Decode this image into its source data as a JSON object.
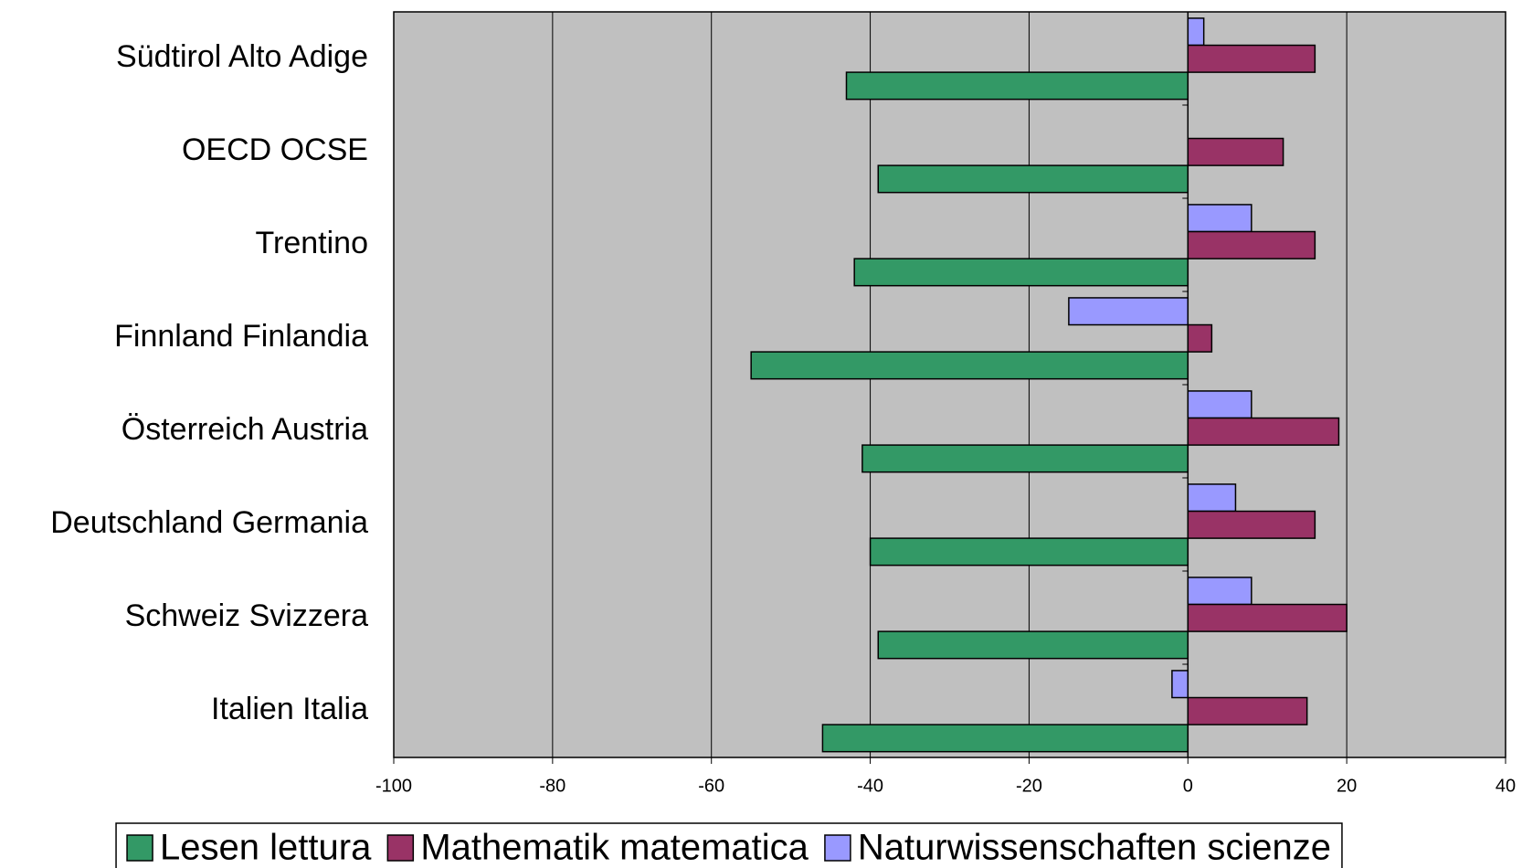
{
  "chart_data": {
    "type": "bar",
    "orientation": "horizontal",
    "categories": [
      "Südtirol Alto Adige",
      "OECD OCSE",
      "Trentino",
      "Finnland Finlandia",
      "Österreich Austria",
      "Deutschland Germania",
      "Schweiz Svizzera",
      "Italien Italia"
    ],
    "series": [
      {
        "name": "Lesen lettura",
        "color": "#339966",
        "values": [
          -43,
          -39,
          -42,
          -55,
          -41,
          -40,
          -39,
          -46
        ]
      },
      {
        "name": "Mathematik matematica",
        "color": "#993366",
        "values": [
          16,
          12,
          16,
          3,
          19,
          16,
          20,
          15
        ]
      },
      {
        "name": "Naturwissenschaften scienze",
        "color": "#9999ff",
        "values": [
          2,
          0,
          8,
          -15,
          8,
          6,
          8,
          -2
        ]
      }
    ],
    "xlim": [
      -100,
      40
    ],
    "xticks": [
      -100,
      -80,
      -60,
      -40,
      -20,
      0,
      20,
      40
    ],
    "grid": true,
    "legend": "bottom",
    "plot_background": "#c0c0c0"
  }
}
